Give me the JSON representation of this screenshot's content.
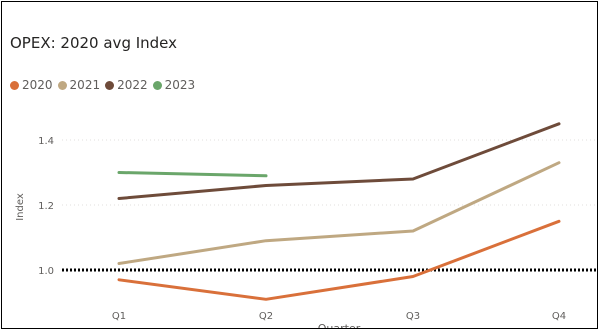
{
  "chart_data": {
    "type": "line",
    "title": "OPEX: 2020 avg Index",
    "xlabel": "Quarter",
    "ylabel": "Index",
    "categories": [
      "Q1",
      "Q2",
      "Q3",
      "Q4"
    ],
    "yticks": [
      1.0,
      1.2,
      1.4
    ],
    "ytick_labels": [
      "1.0",
      "1.2",
      "1.4"
    ],
    "ylim": [
      0.9,
      1.5
    ],
    "grid": true,
    "legend_position": "top-left",
    "reference_line": {
      "y": 1.0,
      "style": "dotted",
      "color": "#000000"
    },
    "series": [
      {
        "name": "2020",
        "color": "#D9703A",
        "values": [
          0.97,
          0.91,
          0.98,
          1.15
        ]
      },
      {
        "name": "2021",
        "color": "#BFA882",
        "values": [
          1.02,
          1.09,
          1.12,
          1.33
        ]
      },
      {
        "name": "2022",
        "color": "#6E4B3A",
        "values": [
          1.22,
          1.26,
          1.28,
          1.45
        ]
      },
      {
        "name": "2023",
        "color": "#6AA66A",
        "values": [
          1.3,
          1.29,
          null,
          null
        ]
      }
    ]
  }
}
